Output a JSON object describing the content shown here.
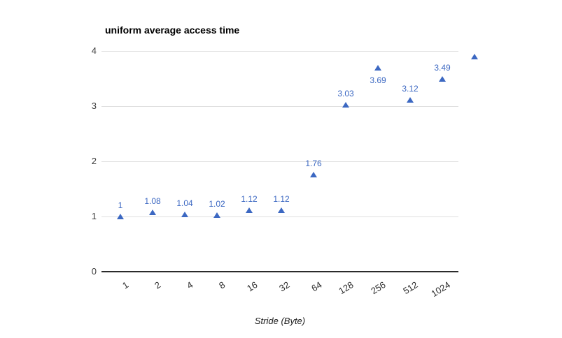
{
  "chart_data": {
    "type": "scatter",
    "title": "uniform average access time",
    "xlabel": "Stride (Byte)",
    "ylabel": "",
    "categories": [
      "1",
      "2",
      "4",
      "8",
      "16",
      "32",
      "64",
      "128",
      "256",
      "512",
      "1024"
    ],
    "points": [
      {
        "category": "1",
        "value": 1,
        "label": "1",
        "label_pos": "above"
      },
      {
        "category": "2",
        "value": 1.08,
        "label": "1.08",
        "label_pos": "above"
      },
      {
        "category": "4",
        "value": 1.04,
        "label": "1.04",
        "label_pos": "above"
      },
      {
        "category": "8",
        "value": 1.02,
        "label": "1.02",
        "label_pos": "above"
      },
      {
        "category": "16",
        "value": 1.12,
        "label": "1.12",
        "label_pos": "above"
      },
      {
        "category": "32",
        "value": 1.12,
        "label": "1.12",
        "label_pos": "above"
      },
      {
        "category": "64",
        "value": 1.76,
        "label": "1.76",
        "label_pos": "above"
      },
      {
        "category": "128",
        "value": 3.03,
        "label": "3.03",
        "label_pos": "above"
      },
      {
        "category": "256",
        "value": 3.69,
        "label": "3.69",
        "label_pos": "below"
      },
      {
        "category": "512",
        "value": 3.12,
        "label": "3.12",
        "label_pos": "above"
      },
      {
        "category": "1024",
        "value": 3.49,
        "label": "3.49",
        "label_pos": "above"
      },
      {
        "category": "",
        "value": 3.9,
        "label": "",
        "label_pos": "above"
      }
    ],
    "yticks": [
      0,
      1,
      2,
      3,
      4
    ],
    "ylim": [
      0,
      4
    ],
    "grid": true,
    "legend": "none",
    "marker": "triangle-up",
    "colors": {
      "series": "#3c68c2",
      "gridline": "#e0e0e0",
      "axis_line": "#2b2b2b",
      "tick_label": "#3c3c3c",
      "title": "#000000"
    }
  }
}
